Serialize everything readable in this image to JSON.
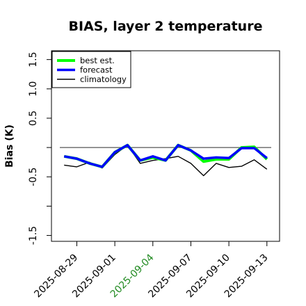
{
  "chart_data": {
    "type": "line",
    "title": "BIAS, layer 2 temperature",
    "xlabel": "",
    "ylabel": "Bias (K)",
    "x": [
      "2025-08-28",
      "2025-08-29",
      "2025-08-30",
      "2025-08-31",
      "2025-09-01",
      "2025-09-02",
      "2025-09-03",
      "2025-09-04",
      "2025-09-05",
      "2025-09-06",
      "2025-09-07",
      "2025-09-08",
      "2025-09-09",
      "2025-09-10",
      "2025-09-11",
      "2025-09-12",
      "2025-09-13"
    ],
    "x_ticks": [
      {
        "label": "2025-08-29",
        "color": "#000000"
      },
      {
        "label": "2025-09-01",
        "color": "#000000"
      },
      {
        "label": "2025-09-04",
        "color": "#228B22"
      },
      {
        "label": "2025-09-07",
        "color": "#000000"
      },
      {
        "label": "2025-09-10",
        "color": "#000000"
      },
      {
        "label": "2025-09-13",
        "color": "#000000"
      }
    ],
    "xlim": [
      "2025-08-27",
      "2025-09-14"
    ],
    "y_ticks": [
      "-1.5",
      "-0.5",
      "0.5",
      "1.0",
      "1.5"
    ],
    "ylim": [
      -1.6,
      1.65
    ],
    "reference_line": 0,
    "series": [
      {
        "name": "best est.",
        "color": "#00ff00",
        "values": [
          -0.15,
          -0.19,
          -0.27,
          -0.33,
          -0.08,
          0.04,
          -0.22,
          -0.17,
          -0.22,
          0.04,
          -0.05,
          -0.24,
          -0.2,
          -0.2,
          0.0,
          0.01,
          -0.2
        ]
      },
      {
        "name": "forecast",
        "color": "#0000ff",
        "values": [
          -0.15,
          -0.19,
          -0.27,
          -0.33,
          -0.08,
          0.04,
          -0.22,
          -0.15,
          -0.22,
          0.04,
          -0.05,
          -0.19,
          -0.17,
          -0.18,
          -0.01,
          -0.01,
          -0.18
        ]
      },
      {
        "name": "climatology",
        "color": "#000000",
        "values": [
          -0.3,
          -0.33,
          -0.25,
          -0.35,
          -0.12,
          0.04,
          -0.27,
          -0.22,
          -0.19,
          -0.15,
          -0.27,
          -0.48,
          -0.27,
          -0.34,
          -0.32,
          -0.21,
          -0.37
        ]
      }
    ],
    "legend_position": "top-left",
    "grid": false
  }
}
